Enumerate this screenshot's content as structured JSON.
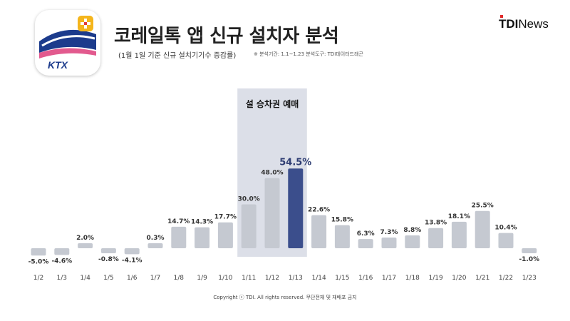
{
  "header": {
    "title": "코레일톡 앱 신규 설치자 분석",
    "subtitle": "(1월 1일 기준 신규 설치기기수 증감률)",
    "note": "※ 분석기간: 1.1~1.23 분석도구: TDI데이터드래곤",
    "brand_bold": "TDI",
    "brand_rest": "News",
    "app_icon_text": "KTX"
  },
  "colors": {
    "bar": "#c5c9d1",
    "highlight_bar": "#3b4e8c",
    "highlight_label": "#2e3d73",
    "band": "#dcdfe8",
    "text": "#333333"
  },
  "chart_data": {
    "type": "bar",
    "categories": [
      "1/2",
      "1/3",
      "1/4",
      "1/5",
      "1/6",
      "1/7",
      "1/8",
      "1/9",
      "1/10",
      "1/11",
      "1/12",
      "1/13",
      "1/14",
      "1/15",
      "1/16",
      "1/17",
      "1/18",
      "1/19",
      "1/20",
      "1/21",
      "1/22",
      "1/23"
    ],
    "values": [
      -5.0,
      -4.6,
      2.0,
      -0.8,
      -4.1,
      0.3,
      14.7,
      14.3,
      17.7,
      30.0,
      48.0,
      54.5,
      22.6,
      15.8,
      6.3,
      7.3,
      8.8,
      13.8,
      18.1,
      25.5,
      10.4,
      -1.0
    ],
    "labels": [
      "-5.0%",
      "-4.6%",
      "2.0%",
      "-0.8%",
      "-4.1%",
      "0.3%",
      "14.7%",
      "14.3%",
      "17.7%",
      "30.0%",
      "48.0%",
      "54.5%",
      "22.6%",
      "15.8%",
      "6.3%",
      "7.3%",
      "8.8%",
      "13.8%",
      "18.1%",
      "25.5%",
      "10.4%",
      "-1.0%"
    ],
    "highlight_index": 11,
    "band": {
      "from": "1/11",
      "to": "1/13",
      "label": "설 승차권 예매"
    },
    "ylim": [
      -5,
      55
    ],
    "xlabel": "",
    "ylabel": "",
    "grid": false,
    "legend": "none"
  },
  "footer": {
    "copyright": "Copyright ⓒ TDI. All rights reserved. 무단전재 및 재배포 금지"
  }
}
